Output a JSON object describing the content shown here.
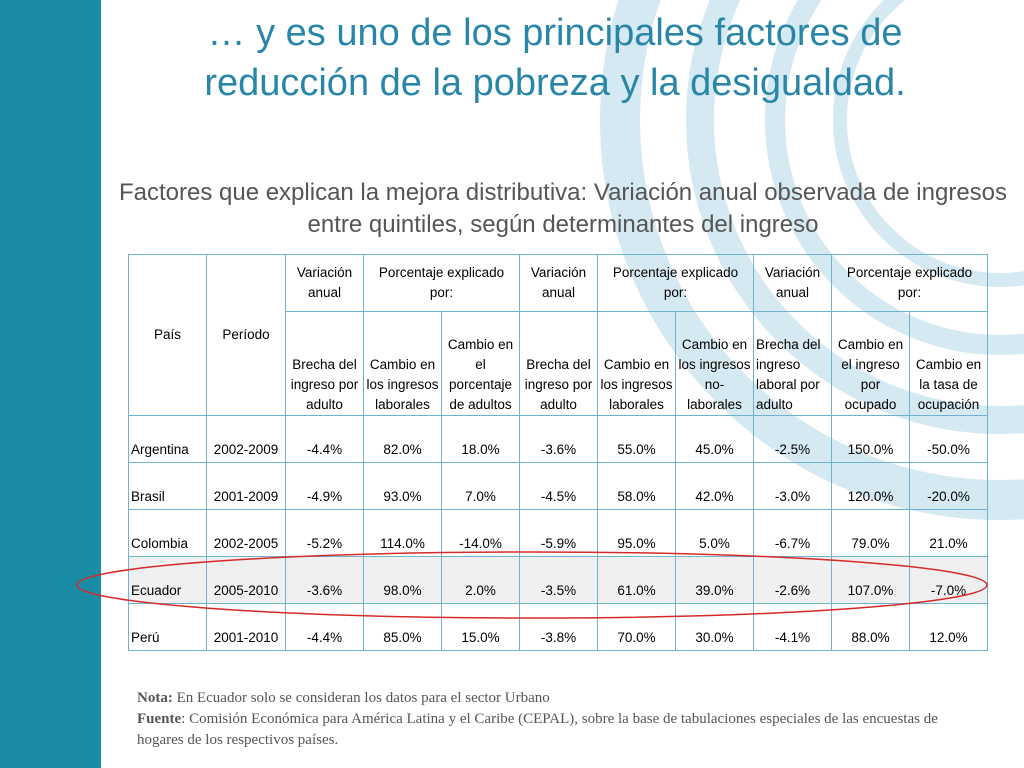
{
  "slide": {
    "title": "… y es uno de los principales factores de reducción de la pobreza y la desigualdad.",
    "subtitle": "Factores que explican la mejora distributiva: Variación anual observada de ingresos entre quintiles, según determinantes del ingreso"
  },
  "table": {
    "headers": {
      "pais": "País",
      "periodo": "Período",
      "variacion_anual_1": "Variación anual",
      "porcentaje_1": "Porcentaje explicado por:",
      "variacion_anual_2": "Variación anual",
      "porcentaje_2": "Porcentaje explicado por:",
      "variacion_anual_3": "Variación anual",
      "porcentaje_3": "Porcentaje explicado por:",
      "sub": [
        "Brecha del ingreso por adulto",
        "Cambio en los ingresos laborales",
        "Cambio en el porcentaje de adultos",
        "Brecha del ingreso por adulto",
        "Cambio en los ingresos laborales",
        "Cambio en los ingresos no-laborales",
        "Brecha del ingreso laboral por adulto",
        "Cambio en el ingreso por ocupado",
        "Cambio en la tasa de ocupación"
      ]
    },
    "rows": [
      {
        "pais": "Argentina",
        "periodo": "2002-2009",
        "values": [
          "-4.4%",
          "82.0%",
          "18.0%",
          "-3.6%",
          "55.0%",
          "45.0%",
          "-2.5%",
          "150.0%",
          "-50.0%"
        ]
      },
      {
        "pais": "Brasil",
        "periodo": "2001-2009",
        "values": [
          "-4.9%",
          "93.0%",
          "7.0%",
          "-4.5%",
          "58.0%",
          "42.0%",
          "-3.0%",
          "120.0%",
          "-20.0%"
        ]
      },
      {
        "pais": "Colombia",
        "periodo": "2002-2005",
        "values": [
          "-5.2%",
          "114.0%",
          "-14.0%",
          "-5.9%",
          "95.0%",
          "5.0%",
          "-6.7%",
          "79.0%",
          "21.0%"
        ]
      },
      {
        "pais": "Ecuador",
        "periodo": "2005-2010",
        "values": [
          "-3.6%",
          "98.0%",
          "2.0%",
          "-3.5%",
          "61.0%",
          "39.0%",
          "-2.6%",
          "107.0%",
          "-7.0%"
        ]
      },
      {
        "pais": "Perú",
        "periodo": "2001-2010",
        "values": [
          "-4.4%",
          "85.0%",
          "15.0%",
          "-3.8%",
          "70.0%",
          "30.0%",
          "-4.1%",
          "88.0%",
          "12.0%"
        ]
      }
    ]
  },
  "notes": {
    "nota_label": "Nota:",
    "nota_text": " En Ecuador solo se consideran los datos para el sector Urbano",
    "fuente_label": "Fuente",
    "fuente_text": ": Comisión Económica para América Latina y el Caribe (CEPAL), sobre la base de tabulaciones especiales de las encuestas de hogares de los respectivos países."
  },
  "colors": {
    "accent_bar": "#1a8ba5",
    "title": "#2a86a8",
    "highlight_ellipse": "#d62a2a",
    "table_border": "#6fb3d0"
  }
}
